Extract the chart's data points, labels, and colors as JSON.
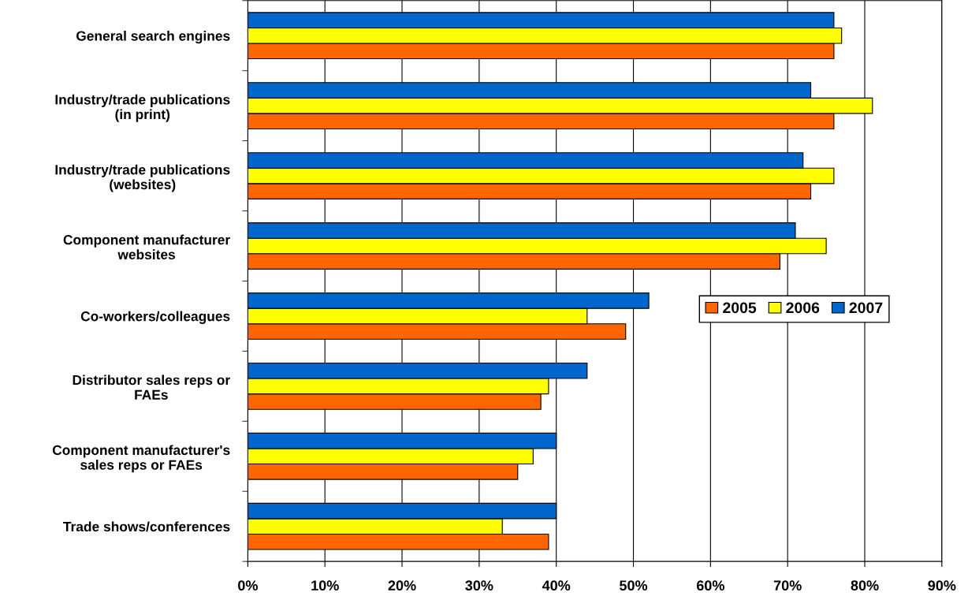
{
  "chart_data": {
    "type": "bar",
    "orientation": "horizontal",
    "categories": [
      "General search engines",
      "Industry/trade publications\n(in print)",
      "Industry/trade publications\n(websites)",
      "Component manufacturer\nwebsites",
      "Co-workers/colleagues",
      "Distributor sales reps or\nFAEs",
      "Component manufacturer's\nsales reps or FAEs",
      "Trade shows/conferences"
    ],
    "series": [
      {
        "name": "2005",
        "color": "#ff6600",
        "values": [
          76,
          76,
          73,
          69,
          49,
          38,
          35,
          39
        ]
      },
      {
        "name": "2006",
        "color": "#ffff00",
        "values": [
          77,
          81,
          76,
          75,
          44,
          39,
          37,
          33
        ]
      },
      {
        "name": "2007",
        "color": "#0066cc",
        "values": [
          76,
          73,
          72,
          71,
          52,
          44,
          40,
          40
        ]
      }
    ],
    "xlim": [
      0,
      90
    ],
    "xticks": [
      {
        "value": 0,
        "label": "0%"
      },
      {
        "value": 10,
        "label": "10%"
      },
      {
        "value": 20,
        "label": "20%"
      },
      {
        "value": 30,
        "label": "30%"
      },
      {
        "value": 40,
        "label": "40%"
      },
      {
        "value": 50,
        "label": "50%"
      },
      {
        "value": 60,
        "label": "60%"
      },
      {
        "value": 70,
        "label": "70%"
      },
      {
        "value": 80,
        "label": "80%"
      },
      {
        "value": 90,
        "label": "90%"
      }
    ],
    "grid": "x",
    "legend": "right"
  }
}
